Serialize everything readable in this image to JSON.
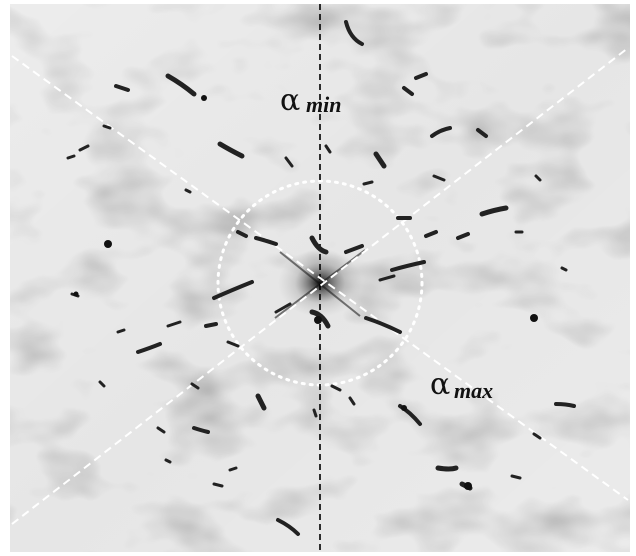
{
  "labels": {
    "alpha_min": {
      "symbol": "α",
      "subscript": "min"
    },
    "alpha_max": {
      "symbol": "α",
      "subscript": "max"
    }
  },
  "colors": {
    "background_light": "#eeeeee",
    "background_dark": "#c4c4c4",
    "dashed_axis_black": "#000000",
    "dashed_axis_white": "#ffffff",
    "streak": "#222222"
  }
}
